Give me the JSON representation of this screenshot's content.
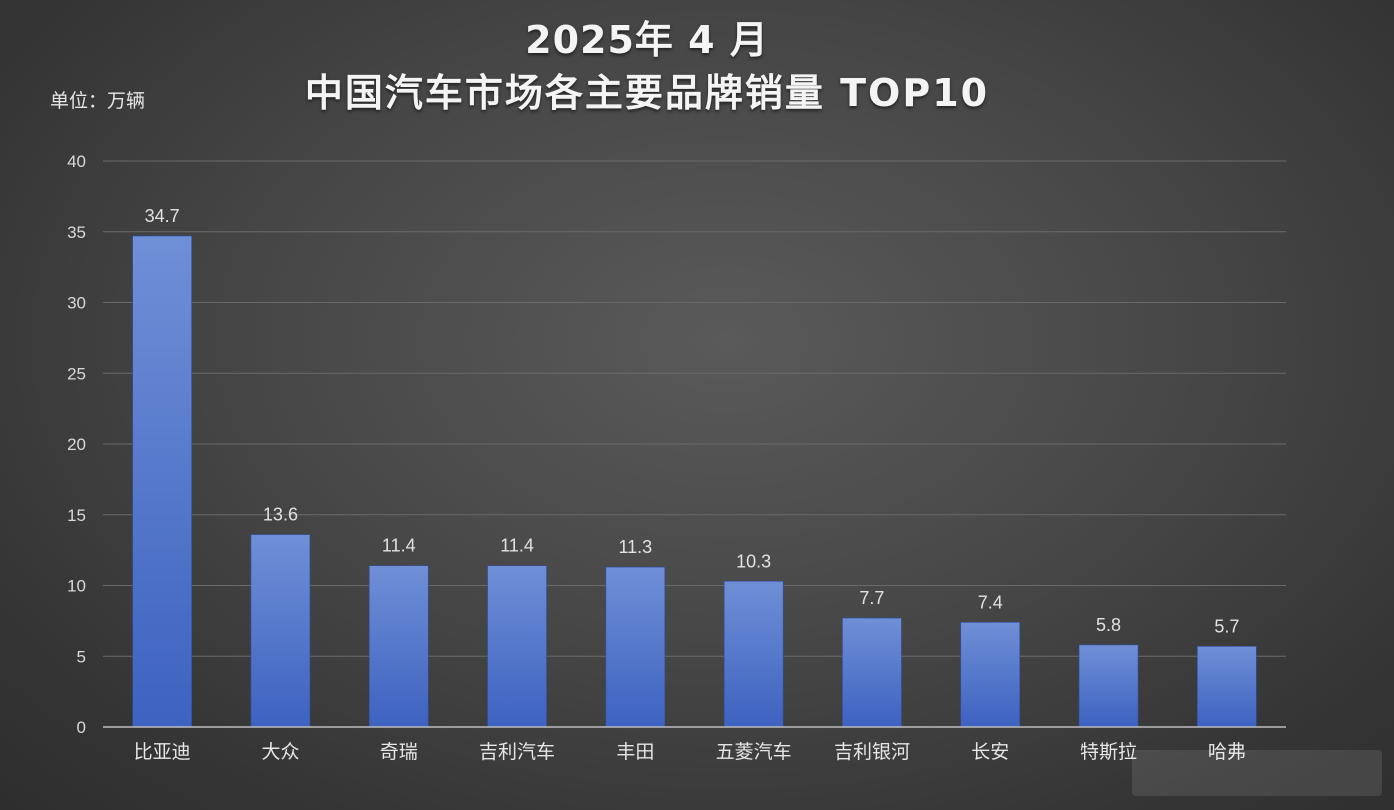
{
  "title": {
    "line1": "2025年 4 月",
    "line2": "中国汽车市场各主要品牌销量  TOP10"
  },
  "unit": "单位：万辆",
  "colors": {
    "bar_top": "#6f8fd6",
    "bar_bottom": "#3d62c0",
    "grid": "#6a6a6a",
    "axis": "#bdbdbd"
  },
  "chart_data": {
    "type": "bar",
    "title": "2025年 4 月 中国汽车市场各主要品牌销量  TOP10",
    "ylabel": "单位：万辆",
    "xlabel": "",
    "categories": [
      "比亚迪",
      "大众",
      "奇瑞",
      "吉利汽车",
      "丰田",
      "五菱汽车",
      "吉利银河",
      "长安",
      "特斯拉",
      "哈弗"
    ],
    "values": [
      34.7,
      13.6,
      11.4,
      11.4,
      11.3,
      10.3,
      7.7,
      7.4,
      5.8,
      5.7
    ],
    "value_labels": [
      "34.7",
      "13.6",
      "11.4",
      "11.4",
      "11.3",
      "10.3",
      "7.7",
      "7.4",
      "5.8",
      "5.7"
    ],
    "ylim": [
      0,
      40
    ],
    "yticks": [
      0,
      5,
      10,
      15,
      20,
      25,
      30,
      35,
      40
    ],
    "grid": true,
    "legend": "none"
  }
}
